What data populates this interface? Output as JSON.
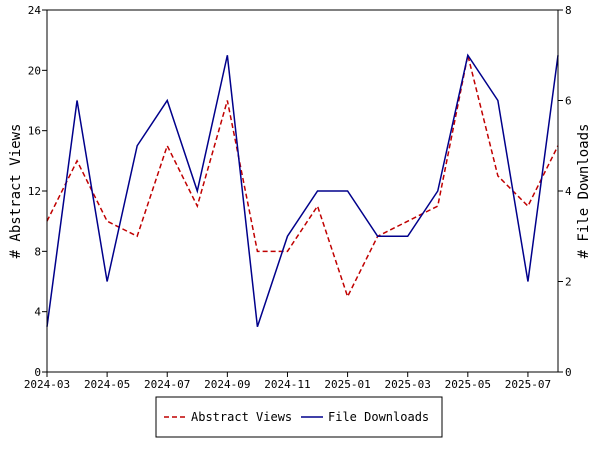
{
  "chart_data": {
    "type": "line",
    "x": [
      "2024-03",
      "2024-04",
      "2024-05",
      "2024-06",
      "2024-07",
      "2024-08",
      "2024-09",
      "2024-10",
      "2024-11",
      "2024-12",
      "2025-01",
      "2025-02",
      "2025-03",
      "2025-04",
      "2025-05",
      "2025-06",
      "2025-07",
      "2025-08"
    ],
    "x_tick_labels": [
      "2024-03",
      "2024-05",
      "2024-07",
      "2024-09",
      "2024-11",
      "2025-01",
      "2025-03",
      "2025-05",
      "2025-07"
    ],
    "series": [
      {
        "name": "Abstract Views",
        "axis": "left",
        "color": "#c00000",
        "dash": "dashed",
        "values": [
          10,
          14,
          10,
          9,
          15,
          11,
          18,
          8,
          8,
          11,
          5,
          9,
          10,
          11,
          21,
          13,
          11,
          15
        ]
      },
      {
        "name": "File Downloads",
        "axis": "right",
        "color": "#00008b",
        "dash": "solid",
        "values": [
          1,
          6,
          2,
          5,
          6,
          4,
          7,
          1,
          3,
          4,
          4,
          3,
          3,
          4,
          7,
          6,
          2,
          7
        ]
      }
    ],
    "ylabel": "# Abstract Views",
    "ylim": [
      0,
      24
    ],
    "y_ticks": [
      0,
      4,
      8,
      12,
      16,
      20,
      24
    ],
    "y2label": "# File Downloads",
    "y2lim": [
      0,
      8
    ],
    "y2_ticks": [
      0,
      2,
      4,
      6,
      8
    ],
    "grid": false,
    "legend_position": "bottom-center"
  }
}
